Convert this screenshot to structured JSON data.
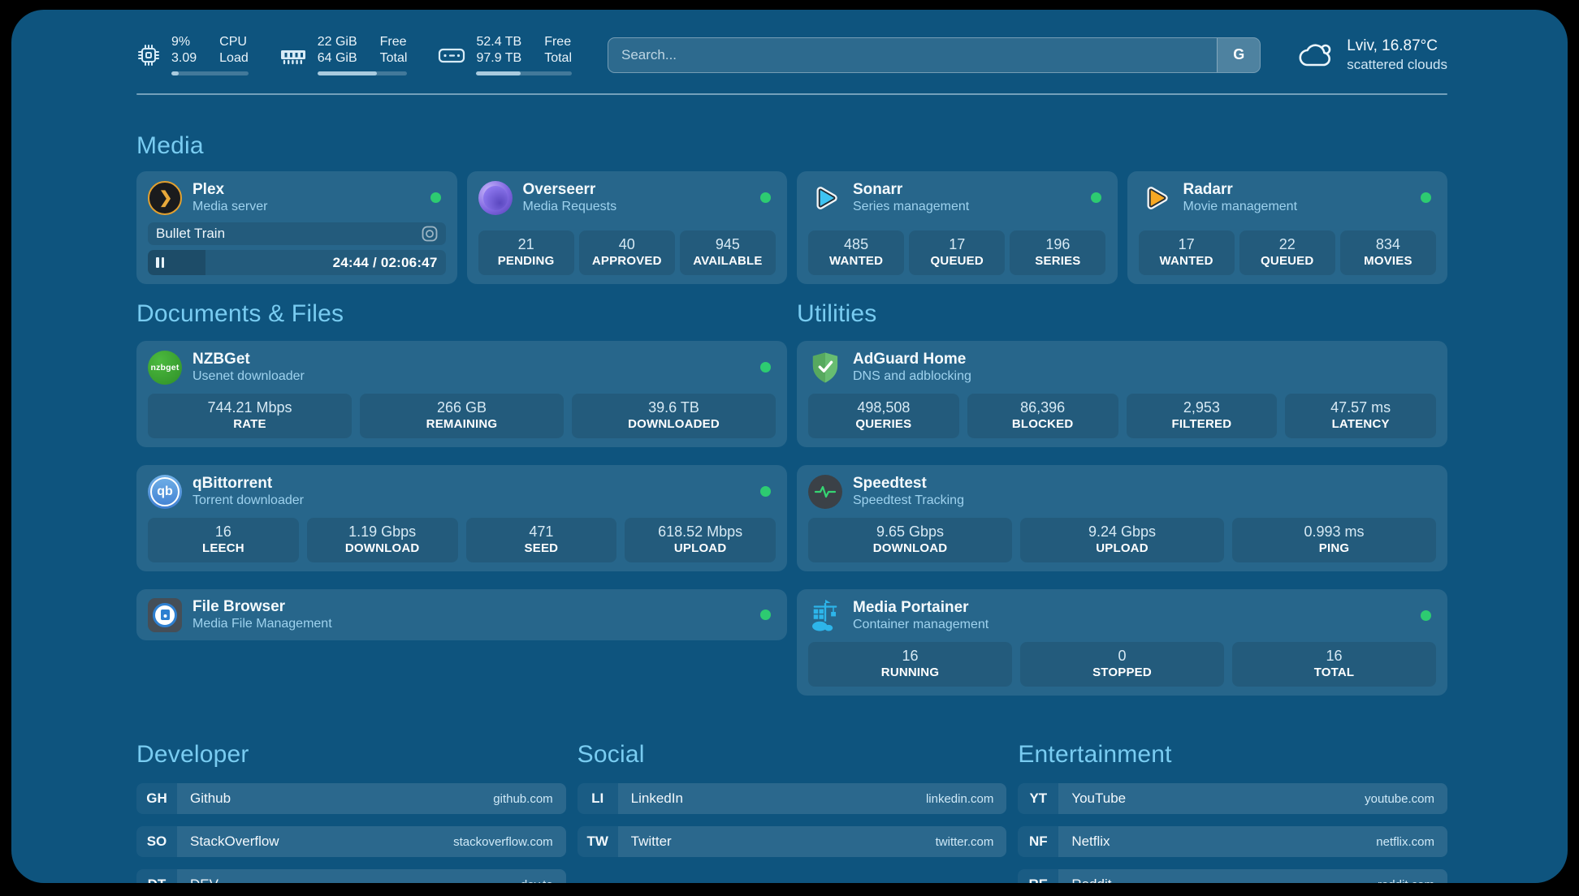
{
  "header": {
    "metrics": [
      {
        "values": [
          "9%",
          "3.09"
        ],
        "labels": [
          "CPU",
          "Load"
        ],
        "progress_pct": 9
      },
      {
        "values": [
          "22 GiB",
          "64 GiB"
        ],
        "labels": [
          "Free",
          "Total"
        ],
        "progress_pct": 66
      },
      {
        "values": [
          "52.4 TB",
          "97.9 TB"
        ],
        "labels": [
          "Free",
          "Total"
        ],
        "progress_pct": 46
      }
    ],
    "search": {
      "placeholder": "Search...",
      "button_label": "G"
    },
    "weather": {
      "location": "Lviv, 16.87°C",
      "condition": "scattered clouds"
    }
  },
  "sections": {
    "media": {
      "title": "Media",
      "plex": {
        "name": "Plex",
        "subtitle": "Media server",
        "status": "online",
        "now_playing": {
          "title": "Bullet Train",
          "time": "24:44 / 02:06:47",
          "progress_pct": 19.5
        }
      },
      "cards": [
        {
          "name": "Overseerr",
          "subtitle": "Media Requests",
          "status": "online",
          "stats": [
            {
              "value": "21",
              "label": "PENDING"
            },
            {
              "value": "40",
              "label": "APPROVED"
            },
            {
              "value": "945",
              "label": "AVAILABLE"
            }
          ]
        },
        {
          "name": "Sonarr",
          "subtitle": "Series management",
          "status": "online",
          "stats": [
            {
              "value": "485",
              "label": "WANTED"
            },
            {
              "value": "17",
              "label": "QUEUED"
            },
            {
              "value": "196",
              "label": "SERIES"
            }
          ]
        },
        {
          "name": "Radarr",
          "subtitle": "Movie management",
          "status": "online",
          "stats": [
            {
              "value": "17",
              "label": "WANTED"
            },
            {
              "value": "22",
              "label": "QUEUED"
            },
            {
              "value": "834",
              "label": "MOVIES"
            }
          ]
        }
      ]
    },
    "documents": {
      "title": "Documents & Files",
      "cards": [
        {
          "name": "NZBGet",
          "subtitle": "Usenet downloader",
          "status": "online",
          "stats": [
            {
              "value": "744.21 Mbps",
              "label": "RATE"
            },
            {
              "value": "266 GB",
              "label": "REMAINING"
            },
            {
              "value": "39.6 TB",
              "label": "DOWNLOADED"
            }
          ]
        },
        {
          "name": "qBittorrent",
          "subtitle": "Torrent downloader",
          "status": "online",
          "stats": [
            {
              "value": "16",
              "label": "LEECH"
            },
            {
              "value": "1.19 Gbps",
              "label": "DOWNLOAD"
            },
            {
              "value": "471",
              "label": "SEED"
            },
            {
              "value": "618.52 Mbps",
              "label": "UPLOAD"
            }
          ]
        },
        {
          "name": "File Browser",
          "subtitle": "Media File Management",
          "status": "online",
          "stats": []
        }
      ]
    },
    "utilities": {
      "title": "Utilities",
      "cards": [
        {
          "name": "AdGuard Home",
          "subtitle": "DNS and adblocking",
          "stats": [
            {
              "value": "498,508",
              "label": "QUERIES"
            },
            {
              "value": "86,396",
              "label": "BLOCKED"
            },
            {
              "value": "2,953",
              "label": "FILTERED"
            },
            {
              "value": "47.57 ms",
              "label": "LATENCY"
            }
          ]
        },
        {
          "name": "Speedtest",
          "subtitle": "Speedtest Tracking",
          "stats": [
            {
              "value": "9.65 Gbps",
              "label": "DOWNLOAD"
            },
            {
              "value": "9.24 Gbps",
              "label": "UPLOAD"
            },
            {
              "value": "0.993 ms",
              "label": "PING"
            }
          ]
        },
        {
          "name": "Media Portainer",
          "subtitle": "Container management",
          "status": "online",
          "stats": [
            {
              "value": "16",
              "label": "RUNNING"
            },
            {
              "value": "0",
              "label": "STOPPED"
            },
            {
              "value": "16",
              "label": "TOTAL"
            }
          ]
        }
      ]
    },
    "bookmarks": [
      {
        "title": "Developer",
        "links": [
          {
            "abbr": "GH",
            "name": "Github",
            "href": "github.com"
          },
          {
            "abbr": "SO",
            "name": "StackOverflow",
            "href": "stackoverflow.com"
          },
          {
            "abbr": "DT",
            "name": "DEV",
            "href": "dev.to"
          }
        ]
      },
      {
        "title": "Social",
        "links": [
          {
            "abbr": "LI",
            "name": "LinkedIn",
            "href": "linkedin.com"
          },
          {
            "abbr": "TW",
            "name": "Twitter",
            "href": "twitter.com"
          }
        ]
      },
      {
        "title": "Entertainment",
        "links": [
          {
            "abbr": "YT",
            "name": "YouTube",
            "href": "youtube.com"
          },
          {
            "abbr": "NF",
            "name": "Netflix",
            "href": "netflix.com"
          },
          {
            "abbr": "RE",
            "name": "Reddit",
            "href": "reddit.com"
          }
        ]
      }
    ]
  },
  "colors": {
    "background": "#0e547e",
    "accent": "#79ccf1",
    "status_online": "#2dcb71",
    "card": "rgba(255,255,255,0.105)"
  }
}
